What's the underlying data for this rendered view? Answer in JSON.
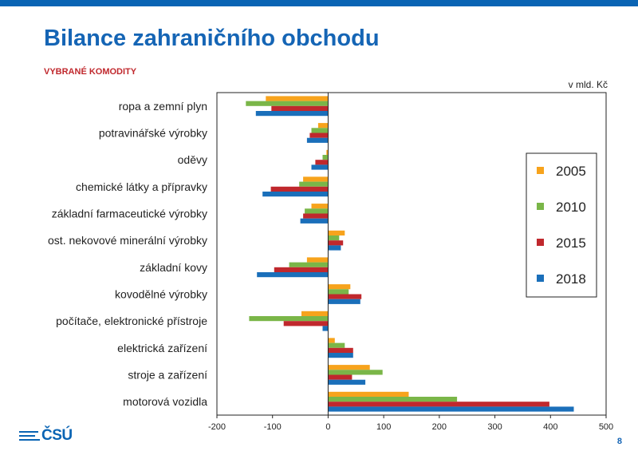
{
  "header": {
    "title": "Bilance zahraničního obchodu",
    "subtitle": "VYBRANÉ KOMODITY"
  },
  "logo": {
    "text": "ČSÚ"
  },
  "page_number": "8",
  "colors": {
    "brand": "#0a64b4",
    "title": "#1565b5",
    "subtitle": "#c0282d",
    "series": [
      "#f7a31c",
      "#7ab648",
      "#c0282d",
      "#1a6fba"
    ]
  },
  "chart_data": {
    "type": "bar",
    "orientation": "horizontal",
    "unit_label": "v mld. Kč",
    "categories": [
      "ropa a zemní plyn",
      "potravinářské výrobky",
      "oděvy",
      "chemické látky a přípravky",
      "základní farmaceutické výrobky",
      "ost. nekovové minerální výrobky",
      "základní kovy",
      "kovodělné výrobky",
      "počítače, elektronické přístroje",
      "elektrická zařízení",
      "stroje a zařízení",
      "motorová vozidla"
    ],
    "series": [
      {
        "name": "2005",
        "values": [
          -112,
          -18,
          -3,
          -45,
          -30,
          30,
          -38,
          40,
          -48,
          12,
          75,
          145
        ]
      },
      {
        "name": "2010",
        "values": [
          -148,
          -30,
          -10,
          -52,
          -42,
          20,
          -70,
          37,
          -142,
          30,
          98,
          232
        ]
      },
      {
        "name": "2015",
        "values": [
          -102,
          -33,
          -23,
          -103,
          -45,
          27,
          -97,
          60,
          -80,
          45,
          43,
          398
        ]
      },
      {
        "name": "2018",
        "values": [
          -130,
          -38,
          -30,
          -118,
          -50,
          23,
          -128,
          58,
          -10,
          45,
          67,
          442
        ]
      }
    ],
    "xlim": [
      -200,
      500
    ],
    "xticks": [
      -200,
      -100,
      0,
      100,
      200,
      300,
      400,
      500
    ],
    "grid": false,
    "legend_position": "right"
  }
}
